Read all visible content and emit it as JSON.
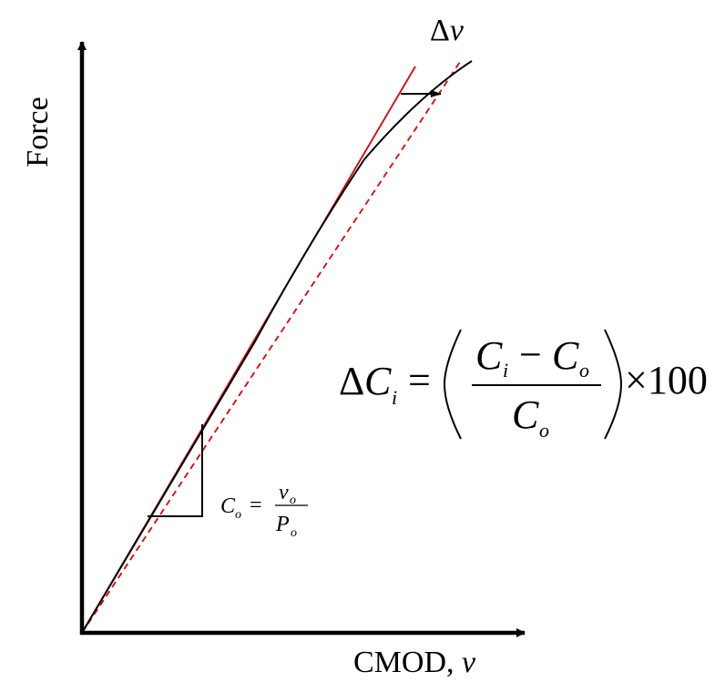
{
  "axes": {
    "y_label": "Force",
    "x_label_prefix": "CMOD, ",
    "x_label_var": "v"
  },
  "annotations": {
    "delta_symbol": "Δ",
    "delta_var": "v",
    "compliance_def": {
      "lhs_var": "C",
      "lhs_sub": "o",
      "equals": "=",
      "num_var": "v",
      "num_sub": "o",
      "den_var": "P",
      "den_sub": "o"
    },
    "compliance_change": {
      "delta": "Δ",
      "lhs_var": "C",
      "lhs_sub": "i",
      "equals": "=",
      "num_a_var": "C",
      "num_a_sub": "i",
      "minus": "−",
      "num_b_var": "C",
      "num_b_sub": "o",
      "den_var": "C",
      "den_sub": "o",
      "times": "×100"
    }
  },
  "colors": {
    "axis": "#000000",
    "curve": "#000000",
    "tangent": "#e00000",
    "secant": "#e00000"
  }
}
